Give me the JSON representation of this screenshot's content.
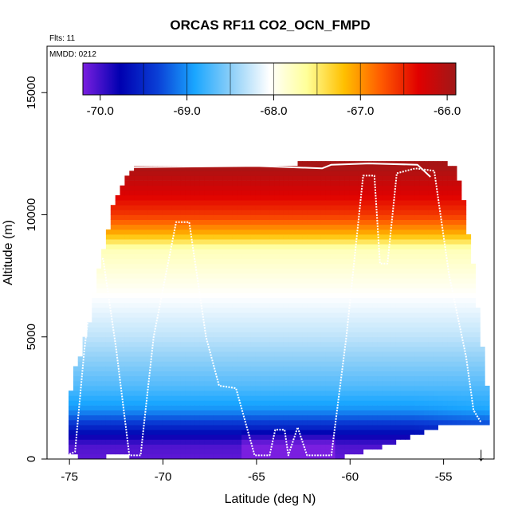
{
  "chart_data": {
    "type": "heatmap",
    "title": "ORCAS RF11 CO2_OCN_FMPD",
    "flights_label": "Flts: 11",
    "mmdd_label": "MMDD: 0212",
    "xlabel": "Latitude (deg N)",
    "ylabel": "Altitude (m)",
    "xlim": [
      -76.2,
      -52.3
    ],
    "ylim": [
      0,
      16900
    ],
    "x_ticks": [
      -75,
      -70,
      -65,
      -60,
      -55
    ],
    "x_tick_labels": [
      "-75",
      "-70",
      "-65",
      "-60",
      "-55"
    ],
    "y_ticks": [
      0,
      5000,
      10000,
      15000
    ],
    "y_tick_labels": [
      "0",
      "5000",
      "10000",
      "15000"
    ],
    "colorbar": {
      "vmin": -70.2,
      "vmax": -65.9,
      "ticks": [
        -70.0,
        -69.0,
        -68.0,
        -67.0,
        -66.0
      ],
      "tick_labels": [
        "-70.0",
        "-69.0",
        "-68.0",
        "-67.0",
        "-66.0"
      ],
      "stops": [
        "#7a1fe0",
        "#0000b0",
        "#0a3fd6",
        "#1aa6ff",
        "#8fd0f8",
        "#ffffff",
        "#ffff99",
        "#ffc000",
        "#ff5a00",
        "#e00000",
        "#a01818"
      ]
    },
    "column_extents": [
      [
        -75.2,
        250,
        1750
      ],
      [
        -74.9,
        200,
        3500
      ],
      [
        -74.6,
        200,
        4000
      ],
      [
        -74.3,
        150,
        5000
      ],
      [
        -74.0,
        150,
        5700
      ],
      [
        -73.7,
        150,
        7200
      ],
      [
        -73.4,
        150,
        8200
      ],
      [
        -73.1,
        200,
        9000
      ],
      [
        -72.8,
        200,
        10300
      ],
      [
        -72.5,
        200,
        10700
      ],
      [
        -72.2,
        200,
        11200
      ],
      [
        -71.9,
        200,
        11600
      ],
      [
        -71.6,
        150,
        12000
      ],
      [
        -71.3,
        150,
        12000
      ],
      [
        -71.0,
        150,
        12000
      ],
      [
        -70.0,
        150,
        12000
      ],
      [
        -69.0,
        150,
        12000
      ],
      [
        -68.0,
        150,
        12000
      ],
      [
        -67.0,
        100,
        12000
      ],
      [
        -66.0,
        100,
        12000
      ],
      [
        -65.0,
        100,
        12000
      ],
      [
        -64.0,
        100,
        12000
      ],
      [
        -63.0,
        100,
        12000
      ],
      [
        -62.0,
        100,
        12200
      ],
      [
        -61.0,
        150,
        12200
      ],
      [
        -60.0,
        250,
        12200
      ],
      [
        -59.0,
        500,
        12200
      ],
      [
        -58.0,
        700,
        12200
      ],
      [
        -57.0,
        1000,
        12200
      ],
      [
        -56.0,
        1250,
        12100
      ],
      [
        -55.0,
        1500,
        12000
      ],
      [
        -54.5,
        1500,
        11900
      ],
      [
        -54.2,
        1500,
        11000
      ],
      [
        -54.0,
        1500,
        10400
      ],
      [
        -53.8,
        1500,
        9100
      ],
      [
        -53.6,
        1500,
        8200
      ],
      [
        -53.4,
        1500,
        6700
      ],
      [
        -53.2,
        1500,
        5500
      ],
      [
        -53.0,
        1500,
        4200
      ],
      [
        -52.8,
        1500,
        3000
      ]
    ],
    "vertical_profile": [
      [
        14000,
        -65.95
      ],
      [
        12000,
        -65.95
      ],
      [
        11000,
        -66.25
      ],
      [
        10000,
        -66.6
      ],
      [
        9200,
        -67.15
      ],
      [
        8600,
        -67.75
      ],
      [
        7000,
        -68.0
      ],
      [
        5000,
        -68.3
      ],
      [
        3000,
        -68.7
      ],
      [
        2000,
        -69.0
      ],
      [
        1200,
        -69.6
      ],
      [
        800,
        -69.9
      ],
      [
        500,
        -70.05
      ],
      [
        0,
        -70.1
      ]
    ],
    "flight_track": [
      [
        -75.0,
        200
      ],
      [
        -74.7,
        300
      ],
      [
        -74.2,
        4500
      ],
      [
        -73.6,
        8200
      ],
      [
        -73.2,
        8200
      ],
      [
        -72.5,
        4500
      ],
      [
        -71.8,
        150
      ],
      [
        -71.2,
        150
      ],
      [
        -70.5,
        5000
      ],
      [
        -69.3,
        9700
      ],
      [
        -68.6,
        9700
      ],
      [
        -67.7,
        5000
      ],
      [
        -67.0,
        3000
      ],
      [
        -66.1,
        2900
      ],
      [
        -65.1,
        150
      ],
      [
        -64.3,
        150
      ],
      [
        -64.0,
        1200
      ],
      [
        -63.5,
        1200
      ],
      [
        -63.3,
        150
      ],
      [
        -62.8,
        1300
      ],
      [
        -62.3,
        150
      ],
      [
        -61.6,
        150
      ],
      [
        -61.0,
        150
      ],
      [
        -60.2,
        5000
      ],
      [
        -59.3,
        11600
      ],
      [
        -58.7,
        11600
      ],
      [
        -58.4,
        8000
      ],
      [
        -58.0,
        8000
      ],
      [
        -57.5,
        11700
      ],
      [
        -56.5,
        11900
      ],
      [
        -55.5,
        11800
      ],
      [
        -54.7,
        7500
      ],
      [
        -53.8,
        4200
      ],
      [
        -53.4,
        2000
      ],
      [
        -53.0,
        1500
      ]
    ],
    "top_track": [
      [
        -71.6,
        11950
      ],
      [
        -65.0,
        12000
      ],
      [
        -61.5,
        11900
      ],
      [
        -61.0,
        12050
      ],
      [
        -59.0,
        12100
      ],
      [
        -56.4,
        12050
      ],
      [
        -55.7,
        11550
      ]
    ],
    "arrow_marker": {
      "latitude": -53.0,
      "symbol": "↓"
    }
  }
}
